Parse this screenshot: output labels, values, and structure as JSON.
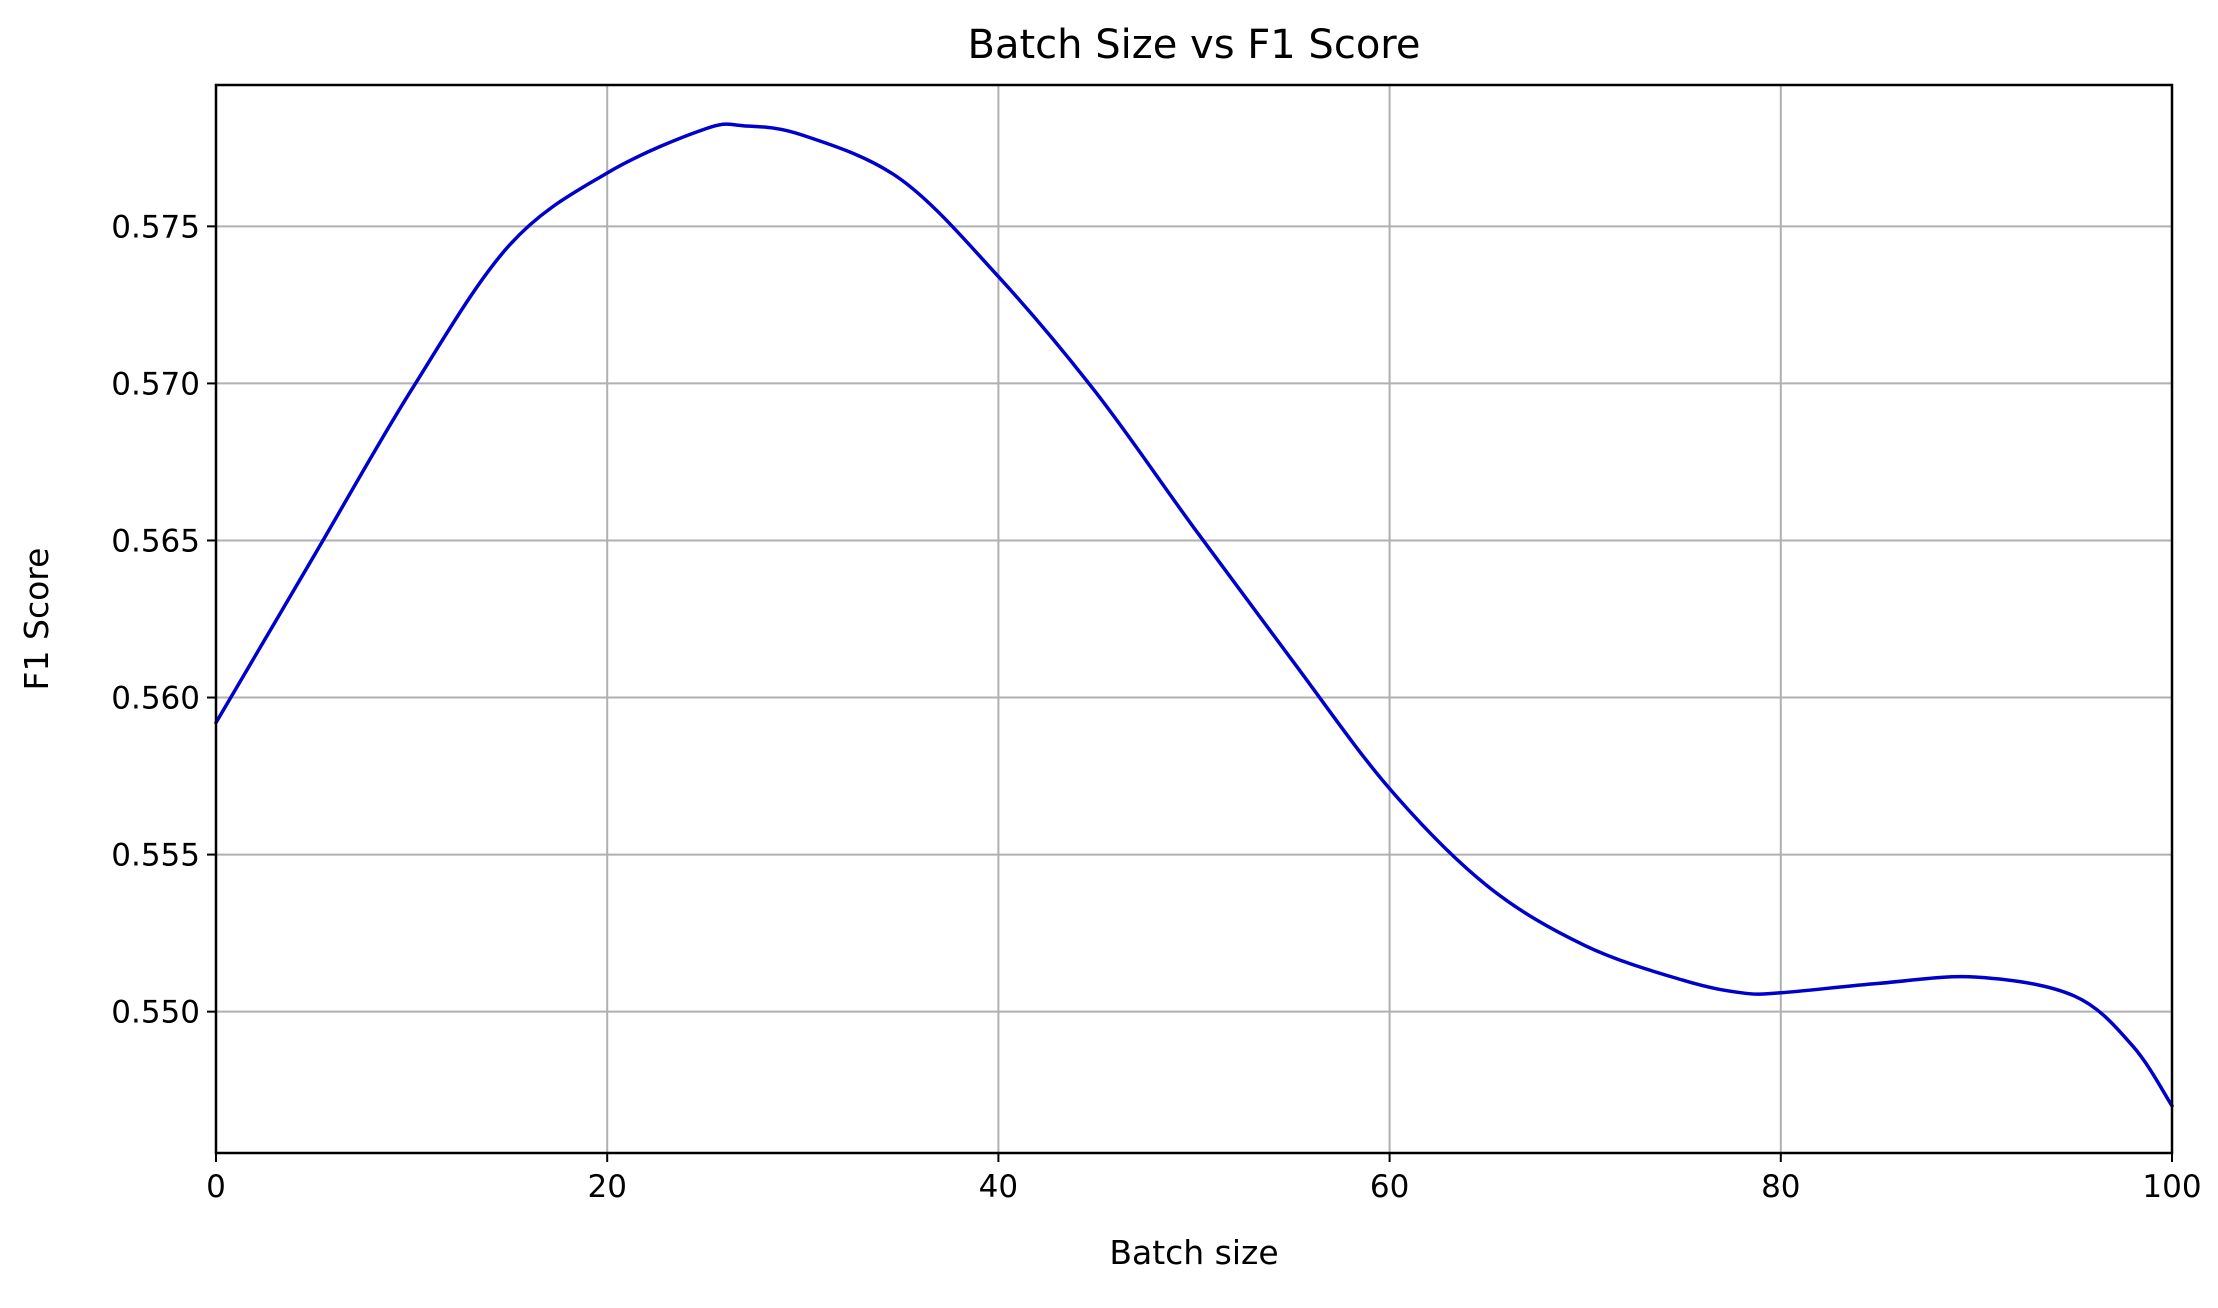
{
  "chart_data": {
    "type": "line",
    "title": "Batch Size vs F1 Score",
    "xlabel": "Batch size",
    "ylabel": "F1 Score",
    "xlim": [
      0,
      100
    ],
    "ylim": [
      0.5455,
      0.5795
    ],
    "x_ticks": [
      0,
      20,
      40,
      60,
      80,
      100
    ],
    "x_tick_labels": [
      "0",
      "20",
      "40",
      "60",
      "80",
      "100"
    ],
    "y_ticks": [
      0.55,
      0.555,
      0.56,
      0.565,
      0.57,
      0.575
    ],
    "y_tick_labels": [
      "0.550",
      "0.555",
      "0.560",
      "0.565",
      "0.570",
      "0.575"
    ],
    "grid": true,
    "legend": "none",
    "series": [
      {
        "color": "#0000cc",
        "x": [
          0,
          5,
          10,
          15,
          20,
          25,
          27,
          30,
          35,
          40,
          45,
          50,
          55,
          60,
          65,
          70,
          75,
          78,
          80,
          85,
          90,
          95,
          98,
          100
        ],
        "y": [
          0.5592,
          0.5645,
          0.5698,
          0.5744,
          0.5767,
          0.5781,
          0.5782,
          0.5779,
          0.5765,
          0.5734,
          0.5697,
          0.5654,
          0.5612,
          0.5571,
          0.554,
          0.5521,
          0.551,
          0.5506,
          0.5506,
          0.5509,
          0.5511,
          0.5505,
          0.5489,
          0.547
        ]
      }
    ]
  }
}
